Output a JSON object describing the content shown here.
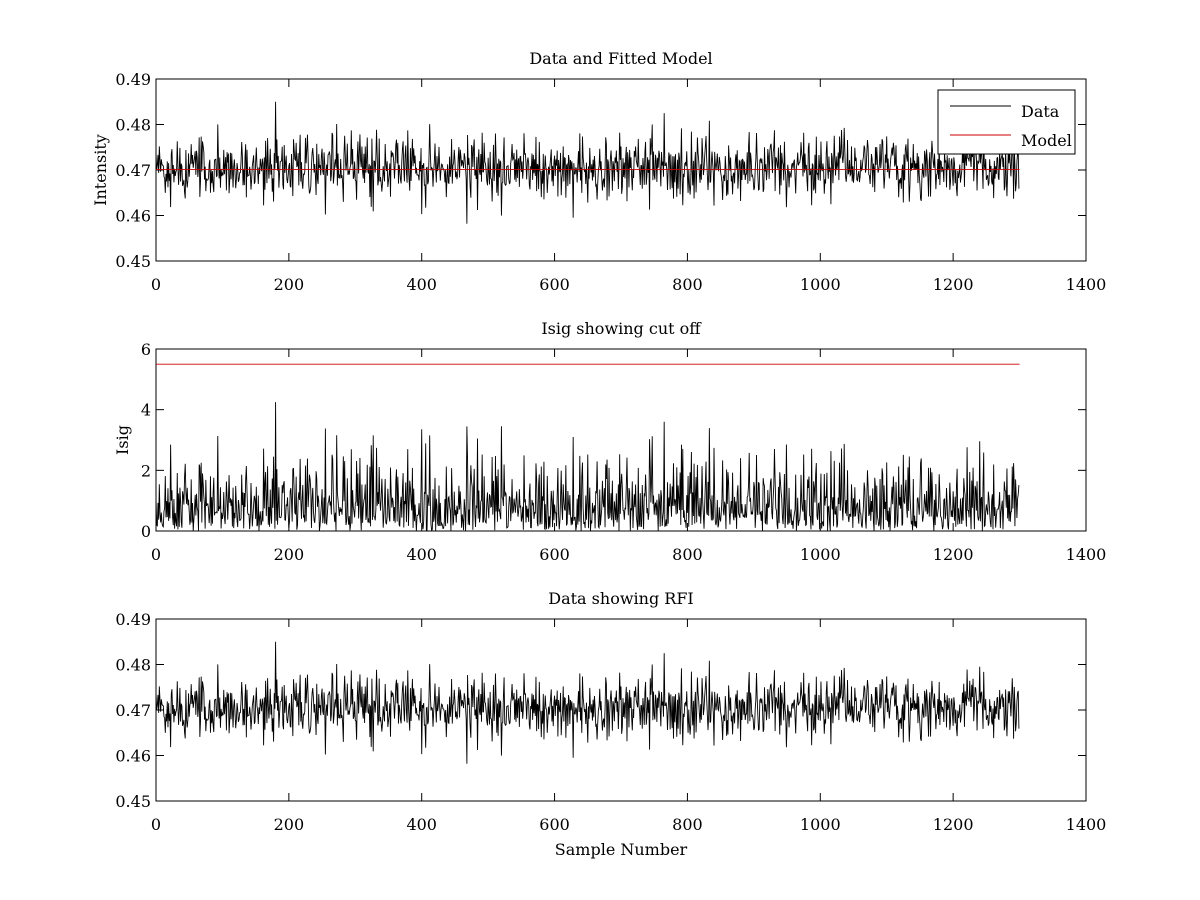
{
  "figure": {
    "background": "#ffffff",
    "axes_color": "#000000"
  },
  "chart_data": [
    {
      "type": "line",
      "title": "Data and Fitted Model",
      "xlabel": "",
      "ylabel": "Intensity",
      "xlim": [
        0,
        1400
      ],
      "ylim": [
        0.45,
        0.49
      ],
      "xticks": [
        0,
        200,
        400,
        600,
        800,
        1000,
        1200,
        1400
      ],
      "yticks": [
        0.45,
        0.46,
        0.47,
        0.48,
        0.49
      ],
      "grid": false,
      "legend": {
        "position": "top-right",
        "entries": [
          "Data",
          "Model"
        ]
      },
      "series": [
        {
          "name": "Data",
          "color": "#000000",
          "kind": "noise",
          "n_samples": 1300,
          "baseline": 0.4705,
          "sigma": 0.0035,
          "spikes": [
            {
              "x": 180,
              "y": 0.485
            },
            {
              "x": 765,
              "y": 0.4825
            },
            {
              "x": 468,
              "y": 0.4582
            },
            {
              "x": 628,
              "y": 0.4595
            }
          ]
        },
        {
          "name": "Model",
          "color": "#cc0000",
          "kind": "constant",
          "x": [
            0,
            1300
          ],
          "y": [
            0.4701,
            0.4701
          ]
        }
      ]
    },
    {
      "type": "line",
      "title": "Isig showing cut off",
      "xlabel": "",
      "ylabel": "Isig",
      "xlim": [
        0,
        1400
      ],
      "ylim": [
        0,
        6
      ],
      "xticks": [
        0,
        200,
        400,
        600,
        800,
        1000,
        1200,
        1400
      ],
      "yticks": [
        0,
        2,
        4,
        6
      ],
      "grid": false,
      "series": [
        {
          "color": "#000000",
          "kind": "abs-noise",
          "n_samples": 1300,
          "derived_from": 0,
          "spikes": [
            {
              "x": 180,
              "y": 4.25
            },
            {
              "x": 765,
              "y": 3.6
            },
            {
              "x": 468,
              "y": 3.45
            },
            {
              "x": 628,
              "y": 3.1
            }
          ]
        },
        {
          "color": "#cc0000",
          "kind": "constant",
          "x": [
            0,
            1300
          ],
          "y": [
            5.5,
            5.5
          ]
        }
      ]
    },
    {
      "type": "line",
      "title": "Data showing RFI",
      "xlabel": "Sample Number",
      "ylabel": "",
      "xlim": [
        0,
        1400
      ],
      "ylim": [
        0.45,
        0.49
      ],
      "xticks": [
        0,
        200,
        400,
        600,
        800,
        1000,
        1200,
        1400
      ],
      "yticks": [
        0.45,
        0.46,
        0.47,
        0.48,
        0.49
      ],
      "grid": false,
      "series": [
        {
          "color": "#000000",
          "kind": "copy",
          "derived_from": 0,
          "n_samples": 1300
        }
      ]
    }
  ]
}
